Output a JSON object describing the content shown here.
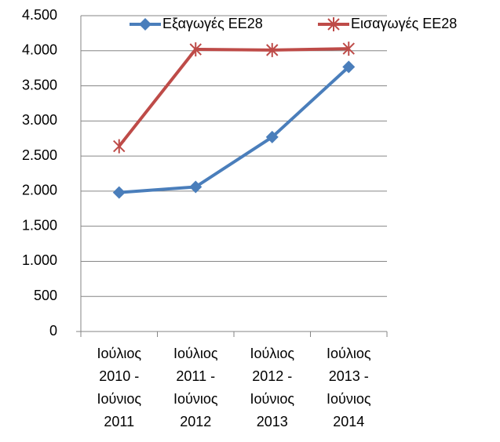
{
  "chart_data": {
    "type": "line",
    "categories": [
      "Ιούλιος 2010 - Ιούνιος 2011",
      "Ιούλιος 2011 - Ιούνιος 2012",
      "Ιούλιος 2012 - Ιούνιος 2013",
      "Ιούλιος 2013 - Ιούνιος 2014"
    ],
    "series": [
      {
        "name": "Εξαγωγές ΕΕ28",
        "color": "#4a7ebb",
        "marker": "diamond",
        "values": [
          1980,
          2060,
          2770,
          3770
        ]
      },
      {
        "name": "Εισαγωγές ΕΕ28",
        "color": "#be4b48",
        "marker": "asterisk",
        "values": [
          2640,
          4020,
          4010,
          4030
        ]
      }
    ],
    "ylim": [
      0,
      4500
    ],
    "yticks": [
      0,
      500,
      {
        "value": 1000,
        "label": "1.000"
      },
      {
        "value": 1500,
        "label": "1.500"
      },
      {
        "value": 2000,
        "label": "2.000"
      },
      {
        "value": 2500,
        "label": "2.500"
      },
      {
        "value": 3000,
        "label": "3.000"
      },
      {
        "value": 3500,
        "label": "3.500"
      },
      {
        "value": 4000,
        "label": "4.000"
      },
      {
        "value": 4500,
        "label": "4.500"
      }
    ],
    "grid": true,
    "legend": "top"
  }
}
